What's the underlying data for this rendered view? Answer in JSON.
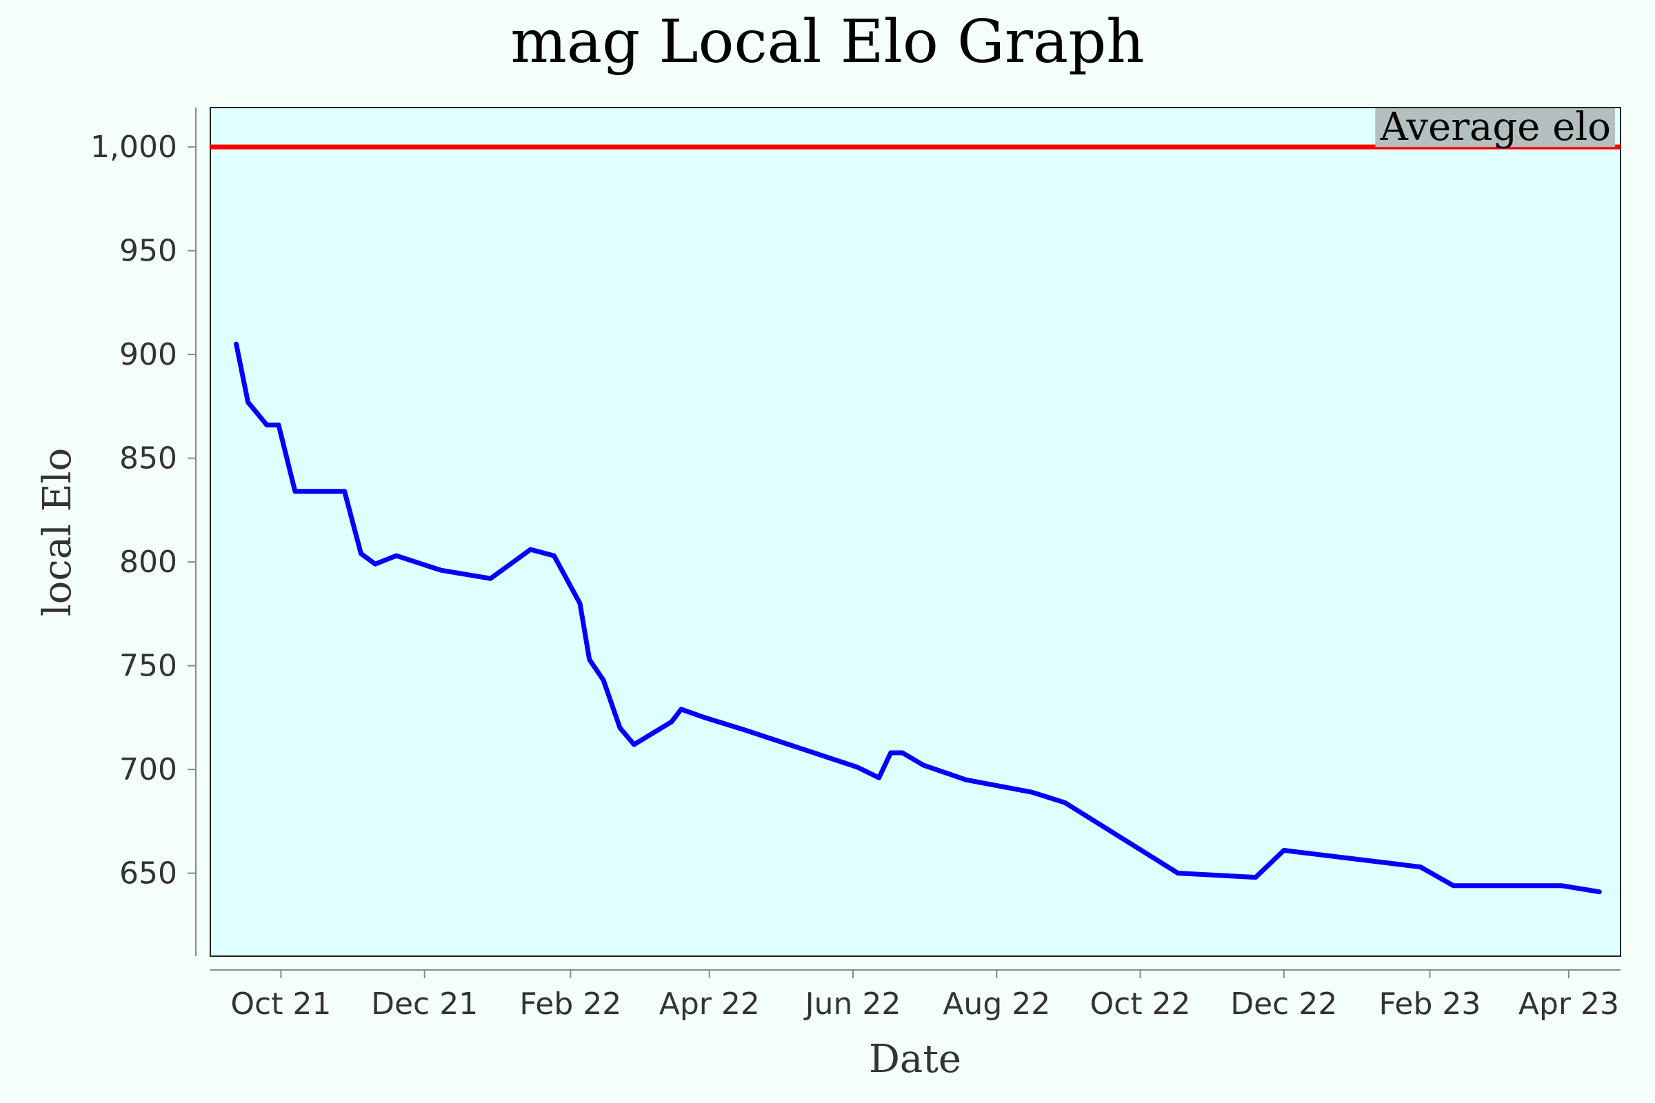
{
  "colors": {
    "page_background": "#f5fffa",
    "plot_background": "#e0ffff",
    "series_line": "#0000ff",
    "reference_line": "#ff0000",
    "reference_label_background": "#b4c0c0"
  },
  "chart_data": {
    "type": "line",
    "title": "mag Local Elo Graph",
    "xlabel": "Date",
    "ylabel": "local Elo",
    "grid": false,
    "x_axis_kind": "date",
    "xlim": [
      "2021-09-01",
      "2023-04-23"
    ],
    "ylim": [
      610,
      1019
    ],
    "x_ticks": [
      {
        "date": "2021-10-01",
        "label": "Oct 21"
      },
      {
        "date": "2021-12-01",
        "label": "Dec 21"
      },
      {
        "date": "2022-02-01",
        "label": "Feb 22"
      },
      {
        "date": "2022-04-01",
        "label": "Apr 22"
      },
      {
        "date": "2022-06-01",
        "label": "Jun 22"
      },
      {
        "date": "2022-08-01",
        "label": "Aug 22"
      },
      {
        "date": "2022-10-01",
        "label": "Oct 22"
      },
      {
        "date": "2022-12-01",
        "label": "Dec 22"
      },
      {
        "date": "2023-02-01",
        "label": "Feb 23"
      },
      {
        "date": "2023-04-01",
        "label": "Apr 23"
      }
    ],
    "y_ticks": [
      {
        "value": 650,
        "label": "650"
      },
      {
        "value": 700,
        "label": "700"
      },
      {
        "value": 750,
        "label": "750"
      },
      {
        "value": 800,
        "label": "800"
      },
      {
        "value": 850,
        "label": "850"
      },
      {
        "value": 900,
        "label": "900"
      },
      {
        "value": 950,
        "label": "950"
      },
      {
        "value": 1000,
        "label": "1,000"
      }
    ],
    "reference_line": {
      "value": 1000,
      "label": "Average elo"
    },
    "series": [
      {
        "points": [
          {
            "date": "2021-09-12",
            "value": 905
          },
          {
            "date": "2021-09-17",
            "value": 877
          },
          {
            "date": "2021-09-25",
            "value": 866
          },
          {
            "date": "2021-09-30",
            "value": 866
          },
          {
            "date": "2021-10-07",
            "value": 834
          },
          {
            "date": "2021-10-28",
            "value": 834
          },
          {
            "date": "2021-11-04",
            "value": 804
          },
          {
            "date": "2021-11-10",
            "value": 799
          },
          {
            "date": "2021-11-19",
            "value": 803
          },
          {
            "date": "2021-12-08",
            "value": 796
          },
          {
            "date": "2021-12-29",
            "value": 792
          },
          {
            "date": "2022-01-15",
            "value": 806
          },
          {
            "date": "2022-01-25",
            "value": 803
          },
          {
            "date": "2022-02-05",
            "value": 780
          },
          {
            "date": "2022-02-09",
            "value": 753
          },
          {
            "date": "2022-02-15",
            "value": 743
          },
          {
            "date": "2022-02-22",
            "value": 720
          },
          {
            "date": "2022-02-28",
            "value": 712
          },
          {
            "date": "2022-03-16",
            "value": 723
          },
          {
            "date": "2022-03-20",
            "value": 729
          },
          {
            "date": "2022-03-30",
            "value": 725
          },
          {
            "date": "2022-04-16",
            "value": 719
          },
          {
            "date": "2022-06-03",
            "value": 701
          },
          {
            "date": "2022-06-12",
            "value": 696
          },
          {
            "date": "2022-06-17",
            "value": 708
          },
          {
            "date": "2022-06-22",
            "value": 708
          },
          {
            "date": "2022-07-01",
            "value": 702
          },
          {
            "date": "2022-07-19",
            "value": 695
          },
          {
            "date": "2022-08-16",
            "value": 689
          },
          {
            "date": "2022-08-30",
            "value": 684
          },
          {
            "date": "2022-10-17",
            "value": 650
          },
          {
            "date": "2022-11-19",
            "value": 648
          },
          {
            "date": "2022-12-01",
            "value": 661
          },
          {
            "date": "2023-01-28",
            "value": 653
          },
          {
            "date": "2023-02-11",
            "value": 644
          },
          {
            "date": "2023-03-29",
            "value": 644
          },
          {
            "date": "2023-04-14",
            "value": 641
          }
        ]
      }
    ]
  }
}
